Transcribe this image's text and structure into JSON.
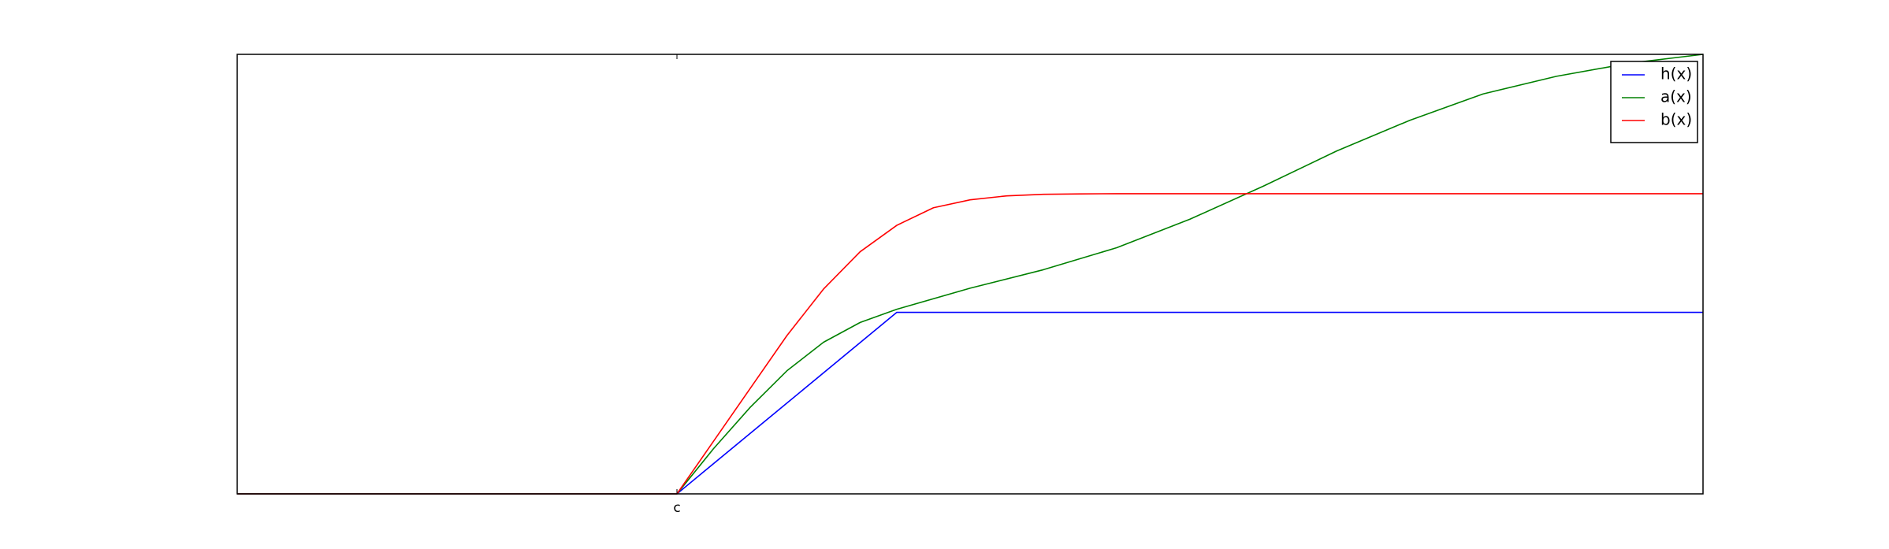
{
  "chart_data": {
    "type": "line",
    "title": "",
    "xlabel": "",
    "ylabel": "",
    "xlim": [
      -3,
      7
    ],
    "ylim": [
      0,
      1
    ],
    "grid": false,
    "legend_position": "top-right",
    "x_ticks": [
      {
        "value": 0,
        "label": "c"
      }
    ],
    "series": [
      {
        "name": "h(x)",
        "color": "#0000ff",
        "x": [
          -3,
          0,
          1.5,
          7
        ],
        "y": [
          0,
          0,
          0.413,
          0.413
        ]
      },
      {
        "name": "a(x)",
        "color": "#008000",
        "x": [
          -3,
          0,
          0.25,
          0.5,
          0.75,
          1,
          1.25,
          1.5,
          2,
          2.5,
          3,
          3.5,
          4,
          4.5,
          5,
          5.5,
          6,
          6.5,
          7
        ],
        "y": [
          0,
          0,
          0.103,
          0.197,
          0.28,
          0.345,
          0.39,
          0.42,
          0.468,
          0.51,
          0.56,
          0.625,
          0.7,
          0.78,
          0.85,
          0.91,
          0.95,
          0.98,
          1.0
        ]
      },
      {
        "name": "b(x)",
        "color": "#ff0000",
        "x": [
          -3,
          0,
          0.25,
          0.5,
          0.75,
          1,
          1.25,
          1.5,
          1.75,
          2,
          2.25,
          2.5,
          2.75,
          3,
          3.5,
          4,
          4.5,
          5,
          6,
          7
        ],
        "y": [
          0,
          0,
          0.12,
          0.24,
          0.36,
          0.466,
          0.551,
          0.611,
          0.651,
          0.669,
          0.678,
          0.6815,
          0.6825,
          0.683,
          0.683,
          0.683,
          0.683,
          0.683,
          0.683,
          0.683
        ]
      }
    ]
  }
}
